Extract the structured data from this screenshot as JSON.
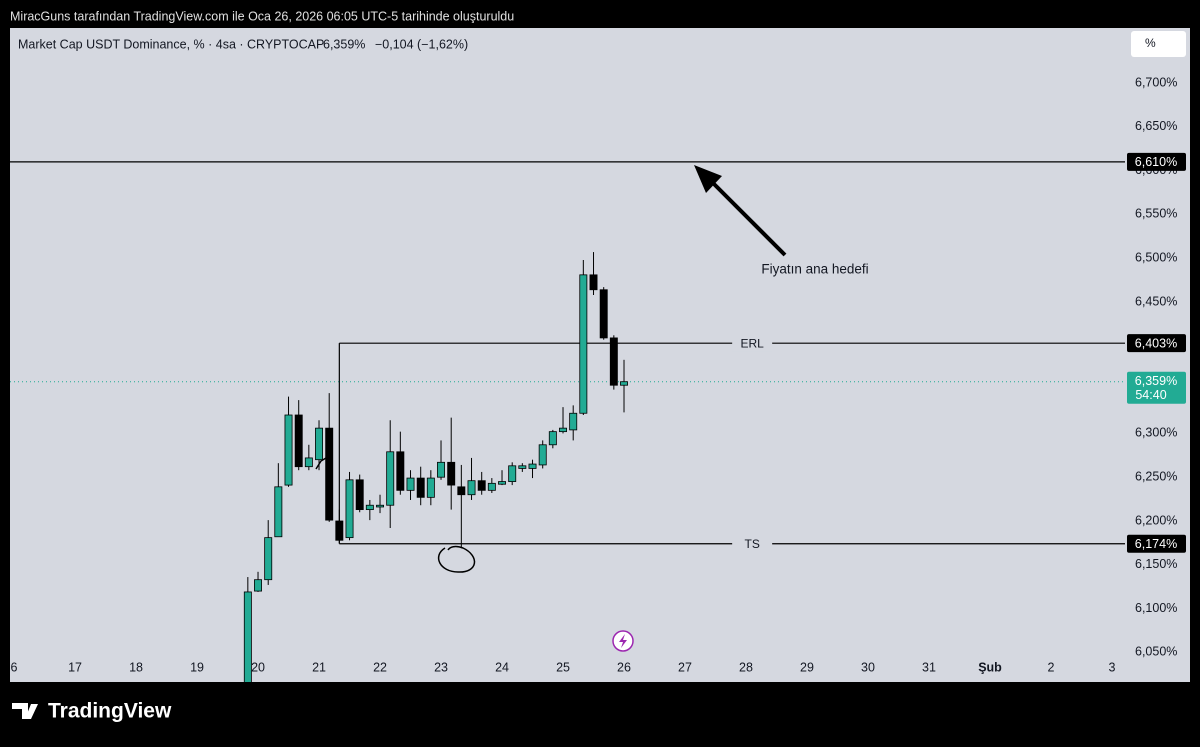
{
  "caption": "MiracGuns tarafından TradingView.com ile Oca 26, 2026 06:05 UTC-5 tarihinde oluşturuldu",
  "footer": {
    "brand": "TradingView"
  },
  "chart_data": {
    "type": "candlestick",
    "header": {
      "symbol": "Market Cap USDT Dominance, % · 4sa · CRYPTOCAP",
      "price": "6,359%",
      "change": "−0,104 (−1,62%)"
    },
    "scale_button": "%",
    "up_color": "#22ab94",
    "down_color": "#000000",
    "x": [
      19.833,
      20,
      20.167,
      20.333,
      20.5,
      20.667,
      20.833,
      21,
      21.167,
      21.333,
      21.5,
      21.667,
      21.833,
      22,
      22.167,
      22.333,
      22.5,
      22.667,
      22.833,
      23,
      23.167,
      23.333,
      23.5,
      23.667,
      23.833,
      24,
      24.167,
      24.333,
      24.5,
      24.667,
      24.833,
      25,
      25.167,
      25.333,
      25.5,
      25.667,
      25.833,
      26
    ],
    "open": [
      6.01,
      6.12,
      6.133,
      6.182,
      6.241,
      6.321,
      6.262,
      6.27,
      6.306,
      6.2,
      6.181,
      6.247,
      6.213,
      6.216,
      6.218,
      6.279,
      6.235,
      6.249,
      6.227,
      6.25,
      6.267,
      6.239,
      6.23,
      6.246,
      6.235,
      6.242,
      6.245,
      6.26,
      6.26,
      6.264,
      6.287,
      6.302,
      6.304,
      6.323,
      6.481,
      6.464,
      6.409,
      6.355
    ],
    "high": [
      6.136,
      6.142,
      6.201,
      6.266,
      6.342,
      6.338,
      6.287,
      6.315,
      6.346,
      6.213,
      6.256,
      6.253,
      6.224,
      6.23,
      6.315,
      6.302,
      6.258,
      6.262,
      6.258,
      6.292,
      6.318,
      6.264,
      6.272,
      6.256,
      6.249,
      6.258,
      6.267,
      6.266,
      6.27,
      6.292,
      6.304,
      6.33,
      6.332,
      6.498,
      6.507,
      6.467,
      6.412,
      6.384
    ],
    "low": [
      6.005,
      6.119,
      6.127,
      6.182,
      6.239,
      6.258,
      6.258,
      6.258,
      6.199,
      6.175,
      6.178,
      6.21,
      6.201,
      6.209,
      6.192,
      6.23,
      6.224,
      6.218,
      6.218,
      6.247,
      6.213,
      6.169,
      6.224,
      6.23,
      6.232,
      6.241,
      6.241,
      6.256,
      6.249,
      6.26,
      6.283,
      6.3,
      6.292,
      6.321,
      6.458,
      6.407,
      6.35,
      6.324
    ],
    "close": [
      6.119,
      6.133,
      6.181,
      6.239,
      6.321,
      6.262,
      6.272,
      6.306,
      6.201,
      6.178,
      6.247,
      6.213,
      6.218,
      6.218,
      6.279,
      6.235,
      6.249,
      6.227,
      6.249,
      6.267,
      6.241,
      6.23,
      6.246,
      6.235,
      6.243,
      6.245,
      6.263,
      6.263,
      6.265,
      6.287,
      6.302,
      6.306,
      6.323,
      6.481,
      6.464,
      6.409,
      6.355,
      6.359
    ],
    "xlim": [
      15.934,
      34.213
    ],
    "xticks": [
      {
        "value": 16,
        "label": "6"
      },
      17,
      18,
      19,
      20,
      21,
      22,
      23,
      24,
      25,
      26,
      27,
      28,
      29,
      30,
      31,
      {
        "value": 32,
        "label": "Şub"
      },
      {
        "value": 33,
        "label": "2"
      },
      {
        "value": 34,
        "label": "3"
      }
    ],
    "ylim": [
      6.0162,
      6.7628
    ],
    "yticks": [
      {
        "value": 6.05,
        "label": "6,050%"
      },
      {
        "value": 6.1,
        "label": "6,100%"
      },
      {
        "value": 6.15,
        "label": "6,150%"
      },
      {
        "value": 6.2,
        "label": "6,200%"
      },
      {
        "value": 6.25,
        "label": "6,250%"
      },
      {
        "value": 6.3,
        "label": "6,300%"
      },
      {
        "value": 6.35,
        "label": "6,350%"
      },
      {
        "value": 6.4,
        "label": "6,400%"
      },
      {
        "value": 6.45,
        "label": "6,450%"
      },
      {
        "value": 6.5,
        "label": "6,500%"
      },
      {
        "value": 6.55,
        "label": "6,550%"
      },
      {
        "value": 6.6,
        "label": "6,600%"
      },
      {
        "value": 6.65,
        "label": "6,650%"
      },
      {
        "value": 6.7,
        "label": "6,700%"
      }
    ],
    "grid": false,
    "levels": [
      {
        "value": 6.61,
        "label": "6,610%"
      },
      {
        "value": 6.403,
        "label": "6,403%",
        "name": "ERL",
        "start_x": 21.333
      },
      {
        "value": 6.174,
        "label": "6,174%",
        "name": "TS",
        "start_x": 21.333
      }
    ],
    "last_price": {
      "value": 6.359,
      "label": "6,359%",
      "countdown": "54:40",
      "color": "#22ab94"
    },
    "annotation": "Fiyatın ana hedefi"
  }
}
